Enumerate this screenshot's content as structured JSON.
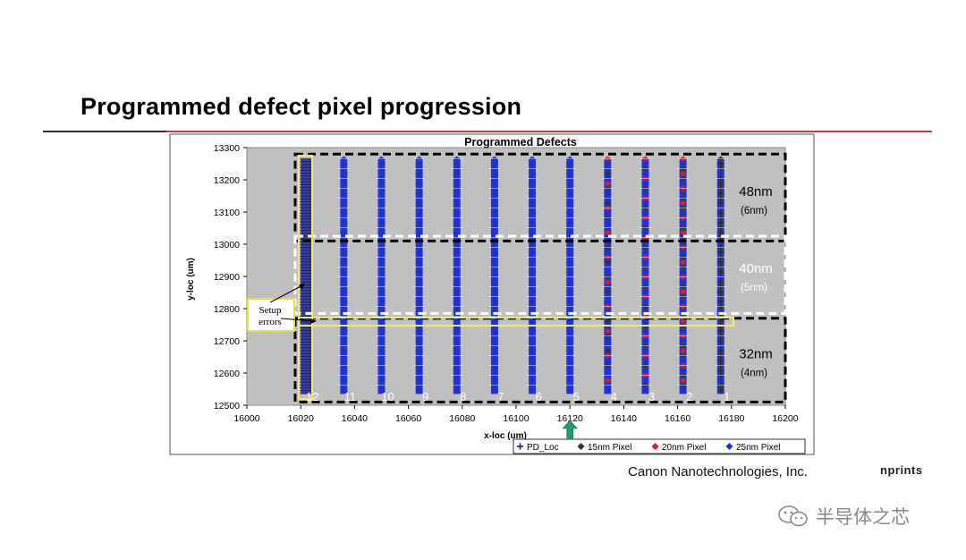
{
  "slide": {
    "title": "Programmed defect pixel progression",
    "company": "Canon Nanotechnologies, Inc.",
    "imprints": "nprints",
    "watermark": "半导体之芯",
    "watermark_icon": "wechat-icon"
  },
  "chart_data": {
    "type": "scatter",
    "title": "Programmed Defects",
    "xlabel": "x-loc (um)",
    "ylabel": "y-loc (um)",
    "xlim": [
      16000,
      16200
    ],
    "ylim": [
      12500,
      13300
    ],
    "x_ticks": [
      "16000",
      "16020",
      "16040",
      "16060",
      "16080",
      "16100",
      "16120",
      "16140",
      "16160",
      "16180",
      "16200"
    ],
    "y_ticks": [
      "13300",
      "13200",
      "13100",
      "13000",
      "12900",
      "12800",
      "12700",
      "12600",
      "12500"
    ],
    "grid": false,
    "legend_position": "bottom-right",
    "series": [
      {
        "name": "PD_Loc",
        "marker": "plus",
        "color": "#1a1a6e"
      },
      {
        "name": "15nm Pixel",
        "marker": "diamond",
        "color": "#333333"
      },
      {
        "name": "20nm Pixel",
        "marker": "diamond",
        "color": "#e01b1b"
      },
      {
        "name": "25nm Pixel",
        "marker": "diamond",
        "color": "#1f2fd8"
      }
    ],
    "columns": [
      {
        "label": "12",
        "x": 16022,
        "kind": "loc"
      },
      {
        "label": "11",
        "x": 16036,
        "kind": "blue"
      },
      {
        "label": "10",
        "x": 16050,
        "kind": "blue"
      },
      {
        "label": "9",
        "x": 16064,
        "kind": "blue"
      },
      {
        "label": "8",
        "x": 16078,
        "kind": "blue"
      },
      {
        "label": "7",
        "x": 16092,
        "kind": "blue"
      },
      {
        "label": "6",
        "x": 16106,
        "kind": "blue"
      },
      {
        "label": "5",
        "x": 16120,
        "kind": "blue"
      },
      {
        "label": "4",
        "x": 16134,
        "kind": "mix_low"
      },
      {
        "label": "3",
        "x": 16148,
        "kind": "mix_mid"
      },
      {
        "label": "2",
        "x": 16162,
        "kind": "mix_high"
      },
      {
        "label": "1",
        "x": 16176,
        "kind": "dark"
      }
    ],
    "column_y_range": [
      12535,
      13265
    ],
    "regions": [
      {
        "label": "48nm",
        "sublabel": "(6nm)",
        "y": [
          13010,
          13280
        ],
        "style": "black"
      },
      {
        "label": "40nm",
        "sublabel": "(5nm)",
        "y": [
          12785,
          13025
        ],
        "style": "white"
      },
      {
        "label": "32nm",
        "sublabel": "(4nm)",
        "y": [
          12510,
          12770
        ],
        "style": "black"
      }
    ],
    "annotation": {
      "text_line1": "Setup",
      "text_line2": "errors"
    },
    "marker_arrow_x": 16120
  }
}
